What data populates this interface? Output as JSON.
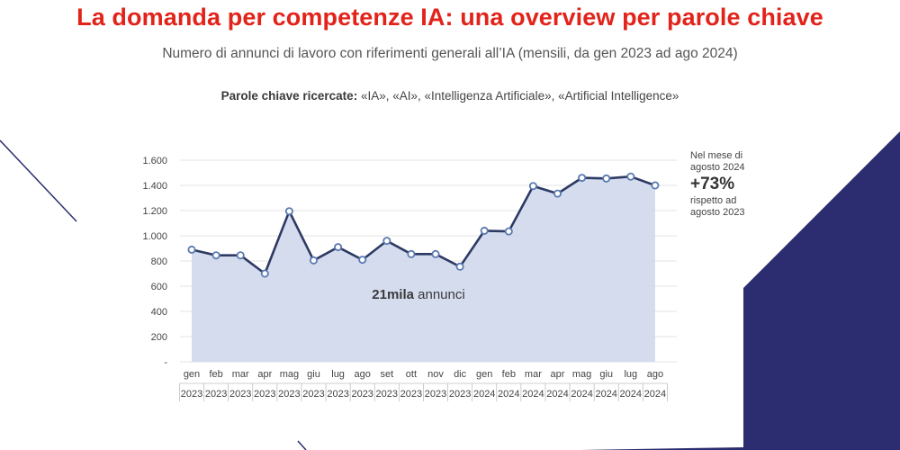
{
  "title": "La domanda per competenze IA: una overview per parole chiave",
  "subtitle": "Numero di annunci di lavoro con riferimenti generali all’IA (mensili, da gen 2023 ad ago 2024)",
  "keywords": {
    "label": "Parole chiave ricercate:",
    "list": "«IA», «AI», «Intelligenza Artificiale», «Artificial Intelligence»"
  },
  "annotation": {
    "line1": "Nel mese di",
    "line2": "agosto 2024",
    "value": "+73%",
    "line3": "rispetto ad",
    "line4": "agosto 2023"
  },
  "center_label": {
    "bold": "21mila",
    "rest": " annunci"
  },
  "colors": {
    "title": "#e2231a",
    "line": "#2d3a63",
    "area": "#cfd8ec",
    "marker_fill": "#ffffff",
    "marker_stroke": "#5a79b0",
    "navy": "#2b2d70"
  },
  "chart_data": {
    "type": "area",
    "categories": [
      {
        "month": "gen",
        "year": "2023"
      },
      {
        "month": "feb",
        "year": "2023"
      },
      {
        "month": "mar",
        "year": "2023"
      },
      {
        "month": "apr",
        "year": "2023"
      },
      {
        "month": "mag",
        "year": "2023"
      },
      {
        "month": "giu",
        "year": "2023"
      },
      {
        "month": "lug",
        "year": "2023"
      },
      {
        "month": "ago",
        "year": "2023"
      },
      {
        "month": "set",
        "year": "2023"
      },
      {
        "month": "ott",
        "year": "2023"
      },
      {
        "month": "nov",
        "year": "2023"
      },
      {
        "month": "dic",
        "year": "2023"
      },
      {
        "month": "gen",
        "year": "2024"
      },
      {
        "month": "feb",
        "year": "2024"
      },
      {
        "month": "mar",
        "year": "2024"
      },
      {
        "month": "apr",
        "year": "2024"
      },
      {
        "month": "mag",
        "year": "2024"
      },
      {
        "month": "giu",
        "year": "2024"
      },
      {
        "month": "lug",
        "year": "2024"
      },
      {
        "month": "ago",
        "year": "2024"
      }
    ],
    "values": [
      890,
      845,
      845,
      700,
      1195,
      805,
      910,
      810,
      960,
      855,
      855,
      755,
      1040,
      1035,
      1395,
      1335,
      1460,
      1455,
      1470,
      1400
    ],
    "ylim": [
      0,
      1600
    ],
    "yticks": [
      {
        "value": 0,
        "label": "-"
      },
      {
        "value": 200,
        "label": "200"
      },
      {
        "value": 400,
        "label": "400"
      },
      {
        "value": 600,
        "label": "600"
      },
      {
        "value": 800,
        "label": "800"
      },
      {
        "value": 1000,
        "label": "1.000"
      },
      {
        "value": 1200,
        "label": "1.200"
      },
      {
        "value": 1400,
        "label": "1.400"
      },
      {
        "value": 1600,
        "label": "1.600"
      }
    ],
    "grid": true,
    "xlabel": "",
    "ylabel": ""
  }
}
